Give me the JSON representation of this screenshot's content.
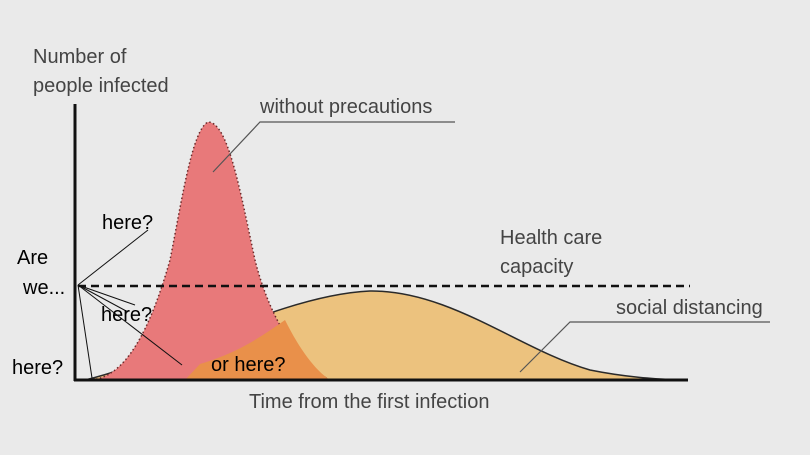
{
  "diagram": {
    "y_axis_label_line1": "Number of",
    "y_axis_label_line2": "people infected",
    "x_axis_label": "Time from the first infection",
    "curve_without_label": "without precautions",
    "capacity_label_line1": "Health care",
    "capacity_label_line2": "capacity",
    "curve_distancing_label": "social distancing"
  },
  "annotations": {
    "are_line1": "Are",
    "are_line2": "we...",
    "here_upper": "here?",
    "here_middle": "here?",
    "here_lower": "here?",
    "or_here": "or here?"
  },
  "colors": {
    "background": "#eaeaea",
    "without_precautions_fill": "#e8797a",
    "social_distancing_fill": "#ecc27e",
    "overlap_fill": "#e9904a",
    "axis": "#111111",
    "annotation_lines": "#111111"
  }
}
